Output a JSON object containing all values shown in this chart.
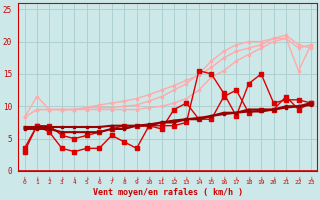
{
  "xlabel": "Vent moyen/en rafales ( km/h )",
  "xlim": [
    -0.5,
    23.5
  ],
  "ylim": [
    0,
    26
  ],
  "yticks": [
    0,
    5,
    10,
    15,
    20,
    25
  ],
  "bg_color": "#cce8e8",
  "grid_color": "#aacccc",
  "lines": [
    {
      "x": [
        0,
        1,
        2,
        3,
        4,
        5,
        6,
        7,
        8,
        9,
        10,
        11,
        12,
        13,
        14,
        15,
        16,
        17,
        18,
        19,
        20,
        21,
        22,
        23
      ],
      "y": [
        8.3,
        11.5,
        9.5,
        9.5,
        9.5,
        9.8,
        10.2,
        10.5,
        10.8,
        11.2,
        11.8,
        12.5,
        13.2,
        14.0,
        14.8,
        16.0,
        17.5,
        18.5,
        19.0,
        19.5,
        20.5,
        21.0,
        19.5,
        19.0
      ],
      "color": "#ffaaaa",
      "lw": 1.0,
      "marker": "s",
      "ms": 1.8,
      "zorder": 2
    },
    {
      "x": [
        0,
        1,
        2,
        3,
        4,
        5,
        6,
        7,
        8,
        9,
        10,
        11,
        12,
        13,
        14,
        15,
        16,
        17,
        18,
        19,
        20,
        21,
        22,
        23
      ],
      "y": [
        8.3,
        9.5,
        9.5,
        9.5,
        9.5,
        9.8,
        9.8,
        9.8,
        10.0,
        10.2,
        10.8,
        11.5,
        12.5,
        13.5,
        15.0,
        17.0,
        18.5,
        19.5,
        20.0,
        20.0,
        20.5,
        20.5,
        19.0,
        19.5
      ],
      "color": "#ffaaaa",
      "lw": 1.0,
      "marker": "s",
      "ms": 1.8,
      "zorder": 2
    },
    {
      "x": [
        1,
        2,
        3,
        4,
        5,
        6,
        7,
        8,
        9,
        10,
        11,
        12,
        13,
        14,
        15,
        16,
        17,
        18,
        19,
        20,
        21,
        22,
        23
      ],
      "y": [
        9.5,
        9.5,
        9.5,
        9.5,
        9.5,
        9.5,
        9.5,
        9.5,
        9.5,
        9.8,
        10.0,
        10.5,
        11.2,
        12.5,
        14.5,
        15.5,
        17.0,
        18.0,
        19.0,
        20.0,
        20.5,
        15.5,
        19.5
      ],
      "color": "#ffaaaa",
      "lw": 1.0,
      "marker": "s",
      "ms": 1.8,
      "zorder": 2
    },
    {
      "x": [
        0,
        1,
        2,
        3,
        4,
        5,
        6,
        7,
        8,
        9,
        10,
        11,
        12,
        13,
        14,
        15,
        16,
        17,
        18,
        19,
        20,
        21,
        22,
        23
      ],
      "y": [
        3.0,
        7.0,
        7.0,
        5.5,
        5.0,
        5.5,
        6.0,
        6.5,
        7.0,
        7.0,
        7.0,
        7.0,
        7.0,
        7.5,
        15.5,
        15.0,
        12.0,
        8.5,
        13.5,
        15.0,
        10.5,
        11.0,
        11.0,
        10.5
      ],
      "color": "#dd0000",
      "lw": 1.0,
      "marker": "s",
      "ms": 2.2,
      "zorder": 3
    },
    {
      "x": [
        0,
        1,
        2,
        3,
        4,
        5,
        6,
        7,
        8,
        9,
        10,
        11,
        12,
        13,
        14,
        15,
        16,
        17,
        18,
        19,
        20,
        21,
        22,
        23
      ],
      "y": [
        3.5,
        7.0,
        6.0,
        3.5,
        3.0,
        3.5,
        3.5,
        5.5,
        4.5,
        3.5,
        7.0,
        6.5,
        9.5,
        10.5,
        8.0,
        8.0,
        11.5,
        12.5,
        9.0,
        9.5,
        9.5,
        11.5,
        9.5,
        10.5
      ],
      "color": "#dd0000",
      "lw": 1.0,
      "marker": "s",
      "ms": 2.2,
      "zorder": 3
    },
    {
      "x": [
        0,
        1,
        2,
        3,
        4,
        5,
        6,
        7,
        8,
        9,
        10,
        11,
        12,
        13,
        14,
        15,
        16,
        17,
        18,
        19,
        20,
        21,
        22,
        23
      ],
      "y": [
        6.5,
        6.5,
        6.5,
        6.0,
        6.0,
        6.0,
        6.0,
        6.5,
        6.5,
        7.0,
        7.0,
        7.5,
        7.5,
        8.0,
        8.0,
        8.5,
        9.0,
        9.0,
        9.5,
        9.5,
        9.5,
        10.0,
        10.0,
        10.5
      ],
      "color": "#990000",
      "lw": 1.5,
      "marker": "s",
      "ms": 1.8,
      "zorder": 4
    },
    {
      "x": [
        0,
        1,
        2,
        3,
        4,
        5,
        6,
        7,
        8,
        9,
        10,
        11,
        12,
        13,
        14,
        15,
        16,
        17,
        18,
        19,
        20,
        21,
        22,
        23
      ],
      "y": [
        6.8,
        6.8,
        6.8,
        6.8,
        6.8,
        6.8,
        6.8,
        7.0,
        7.0,
        7.0,
        7.2,
        7.5,
        7.8,
        8.0,
        8.2,
        8.5,
        8.8,
        9.0,
        9.2,
        9.2,
        9.5,
        9.8,
        10.0,
        10.2
      ],
      "color": "#990000",
      "lw": 1.5,
      "marker": "s",
      "ms": 1.8,
      "zorder": 4
    }
  ]
}
